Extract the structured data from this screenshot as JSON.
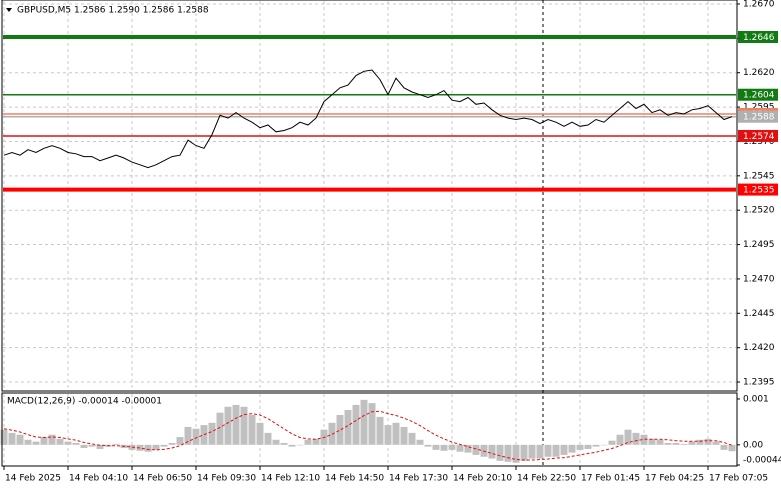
{
  "chart_data": [
    {
      "type": "line",
      "title": "GBPUSD,M5  1.2586 1.2590 1.2586 1.2588",
      "color": "#000000",
      "grid": true,
      "x": [
        0,
        4,
        8,
        12,
        16,
        20,
        24,
        28,
        32,
        36,
        40,
        44,
        48,
        52,
        56,
        60,
        64,
        68,
        72,
        76,
        80,
        84,
        88,
        92,
        96,
        100,
        104,
        108,
        112,
        116,
        120,
        124,
        128,
        132,
        136,
        140,
        144,
        148,
        152,
        156,
        160,
        164,
        168,
        172,
        176,
        180,
        184,
        188,
        192,
        196,
        200,
        204,
        208,
        212,
        216,
        220,
        224,
        228,
        232,
        236,
        240,
        244,
        248,
        252,
        256,
        260,
        264,
        268,
        272,
        276,
        280,
        284,
        288,
        292,
        296,
        300,
        304,
        308,
        312,
        316,
        320,
        324,
        328,
        332,
        336,
        340,
        344,
        348,
        352,
        356,
        360,
        364
      ],
      "values": [
        1.256,
        1.2562,
        1.256,
        1.2564,
        1.2562,
        1.2565,
        1.2567,
        1.2565,
        1.2562,
        1.2561,
        1.2559,
        1.2559,
        1.2556,
        1.2558,
        1.256,
        1.2558,
        1.2555,
        1.2553,
        1.2551,
        1.2553,
        1.2556,
        1.2559,
        1.256,
        1.2571,
        1.2567,
        1.2565,
        1.2575,
        1.2589,
        1.2587,
        1.2591,
        1.2587,
        1.2584,
        1.258,
        1.2582,
        1.2577,
        1.2578,
        1.258,
        1.2584,
        1.2582,
        1.2587,
        1.2599,
        1.2604,
        1.2609,
        1.2611,
        1.2618,
        1.2621,
        1.2622,
        1.2615,
        1.2604,
        1.2616,
        1.2609,
        1.2606,
        1.2604,
        1.2602,
        1.2604,
        1.2607,
        1.26,
        1.2599,
        1.2602,
        1.2597,
        1.2598,
        1.2593,
        1.2589,
        1.2587,
        1.2586,
        1.2587,
        1.2586,
        1.2583,
        1.2586,
        1.2584,
        1.2581,
        1.2584,
        1.2581,
        1.2582,
        1.2586,
        1.2584,
        1.2589,
        1.2594,
        1.2599,
        1.2594,
        1.2597,
        1.2591,
        1.2593,
        1.2589,
        1.2591,
        1.259,
        1.2593,
        1.2594,
        1.2596,
        1.2591,
        1.2586,
        1.2588
      ],
      "xlim": [
        0,
        366
      ],
      "xticks": [
        {
          "value": 0,
          "label": "14 Feb 2025"
        },
        {
          "value": 32,
          "label": "14 Feb 04:10"
        },
        {
          "value": 64,
          "label": "14 Feb 06:50"
        },
        {
          "value": 96,
          "label": "14 Feb 09:30"
        },
        {
          "value": 128,
          "label": "14 Feb 12:10"
        },
        {
          "value": 160,
          "label": "14 Feb 14:50"
        },
        {
          "value": 192,
          "label": "14 Feb 17:30"
        },
        {
          "value": 224,
          "label": "14 Feb 20:10"
        },
        {
          "value": 256,
          "label": "14 Feb 22:50"
        },
        {
          "value": 288,
          "label": "17 Feb 01:45"
        },
        {
          "value": 320,
          "label": "17 Feb 04:25"
        },
        {
          "value": 352,
          "label": "17 Feb 07:05"
        }
      ],
      "ylim": [
        1.23892,
        1.26729
      ],
      "yticks": [
        {
          "value": 1.2395,
          "label": "1.2395"
        },
        {
          "value": 1.242,
          "label": "1.2420"
        },
        1.2445,
        {
          "value": 1.247,
          "label": "1.2470"
        },
        1.2495,
        {
          "value": 1.252,
          "label": "1.2520"
        },
        1.2545,
        {
          "value": 1.257,
          "label": "1.2570"
        },
        1.2595,
        {
          "value": 1.262,
          "label": "1.2620"
        },
        1.2645,
        {
          "value": 1.267,
          "label": "1.2670"
        }
      ],
      "levels": [
        {
          "value": 1.2646,
          "color": "#127a12",
          "style": "thick"
        },
        {
          "value": 1.2604,
          "color": "#127a12",
          "style": "thin"
        },
        {
          "value": 1.259,
          "color": "#f08060",
          "style": "thin"
        },
        {
          "value": 1.2588,
          "color": "#b0b0b0",
          "style": "thin"
        },
        {
          "value": 1.2574,
          "color": "#e01010",
          "style": "thin"
        },
        {
          "value": 1.2535,
          "color": "#ff0000",
          "style": "thick"
        }
      ]
    },
    {
      "type": "macd",
      "title": "MACD(12,26,9) -0.00014 -0.00001",
      "grid": true,
      "histogram": {
        "color": "#c0c0c0",
        "values": [
          0.00033,
          0.00026,
          0.00022,
          0.00011,
          7e-05,
          0.00017,
          0.00022,
          0.00013,
          7e-05,
          4e-05,
          -7e-05,
          -4e-05,
          -9e-05,
          -4e-05,
          2e-05,
          -7e-05,
          -0.00011,
          -0.00013,
          -0.00015,
          -0.00011,
          -4e-05,
          4e-05,
          0.00017,
          0.00039,
          0.00035,
          0.00043,
          0.00048,
          0.0007,
          0.00083,
          0.00087,
          0.00083,
          0.00065,
          0.00048,
          0.00026,
          0.00011,
          4e-05,
          -4e-05,
          0,
          0.00011,
          0.00013,
          0.00033,
          0.00048,
          0.00065,
          0.00076,
          0.00087,
          0.00098,
          0.00091,
          0.00061,
          0.00043,
          0.00048,
          0.00039,
          0.00026,
          0.00011,
          -4e-05,
          -0.00011,
          -0.00013,
          -0.00011,
          -0.00015,
          -0.00017,
          -0.00022,
          -0.00026,
          -0.0003,
          -0.00035,
          -0.00037,
          -0.00039,
          -0.00035,
          -0.0003,
          -0.0003,
          -0.00026,
          -0.00026,
          -0.00022,
          -0.00017,
          -0.00011,
          -9e-05,
          -4e-05,
          0,
          9e-05,
          0.00022,
          0.00033,
          0.00026,
          0.00022,
          0.00013,
          0.00011,
          4e-05,
          4e-05,
          2e-05,
          7e-05,
          0.00011,
          0.00013,
          7e-05,
          -0.00011,
          -0.00014
        ]
      },
      "signal": {
        "color": "#e01010",
        "values": [
          0.00035,
          0.00032,
          0.00028,
          0.00022,
          0.00017,
          0.00016,
          0.00017,
          0.00016,
          0.00013,
          0.0001,
          5e-05,
          2e-05,
          -1e-05,
          -2e-05,
          -2e-05,
          -3e-05,
          -5e-05,
          -7e-05,
          -0.0001,
          -0.00011,
          -0.0001,
          -7e-05,
          -2e-05,
          7e-05,
          0.00015,
          0.00022,
          0.00029,
          0.00038,
          0.00048,
          0.00058,
          0.00066,
          0.00068,
          0.00065,
          0.00057,
          0.00046,
          0.00035,
          0.00024,
          0.00016,
          0.00013,
          0.00012,
          0.00016,
          0.00023,
          0.00032,
          0.00042,
          0.00053,
          0.00064,
          0.00072,
          0.00073,
          0.00068,
          0.00064,
          0.00058,
          0.00051,
          0.00042,
          0.00031,
          0.00021,
          0.00013,
          6e-05,
          1e-05,
          -4e-05,
          -9e-05,
          -0.00014,
          -0.00019,
          -0.00024,
          -0.00028,
          -0.00032,
          -0.00033,
          -0.00033,
          -0.00032,
          -0.00031,
          -0.00029,
          -0.00028,
          -0.00025,
          -0.00022,
          -0.00019,
          -0.00016,
          -0.00012,
          -8e-05,
          -2e-05,
          5e-05,
          9e-05,
          0.00012,
          0.00012,
          0.00012,
          0.00011,
          9e-05,
          8e-05,
          8e-05,
          8e-05,
          9e-05,
          9e-05,
          5e-05,
          -1e-05
        ]
      },
      "ylim": [
        -0.00044,
        0.00113
      ],
      "yticks": [
        -0.00044,
        {
          "value": 0,
          "label": "0.00"
        },
        0.001
      ]
    }
  ]
}
